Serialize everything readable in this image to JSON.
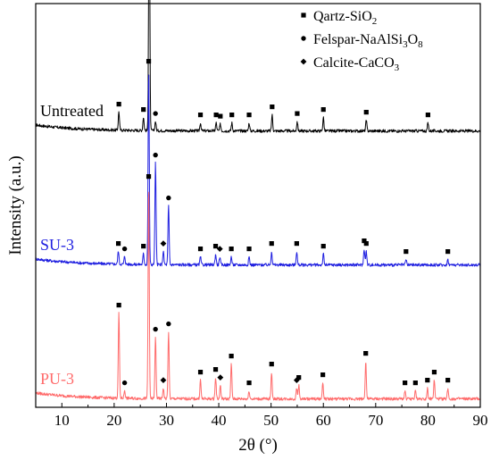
{
  "chart_data": {
    "type": "line",
    "xlabel": "2θ (°)",
    "ylabel": "Intensity (a.u.)",
    "xlim": [
      5,
      90
    ],
    "x_ticks": [
      "10",
      "20",
      "30",
      "40",
      "50",
      "60",
      "70",
      "80",
      "90"
    ],
    "x_tick_values": [
      10,
      20,
      30,
      40,
      50,
      60,
      70,
      80,
      90
    ],
    "grid": false,
    "legend": {
      "placement": "top-right",
      "entries": [
        {
          "symbol": "square",
          "label": "Qartz-SiO",
          "sub": "2",
          "rest": ""
        },
        {
          "symbol": "circle",
          "label": "Felspar-NaAlSi",
          "sub": "3",
          "rest": "O",
          "sub2": "8"
        },
        {
          "symbol": "diamond",
          "label": "Calcite-CaCO",
          "sub": "3",
          "rest": ""
        }
      ]
    },
    "series": [
      {
        "name": "Untreated",
        "color": "#000000",
        "baseline": 1.0,
        "peaks": [
          {
            "x": 20.9,
            "h": 0.07,
            "m": "square"
          },
          {
            "x": 25.6,
            "h": 0.05,
            "m": "square"
          },
          {
            "x": 26.7,
            "h": 1.0,
            "m": "square"
          },
          {
            "x": 27.9,
            "h": 0.035,
            "m": "circle"
          },
          {
            "x": 36.5,
            "h": 0.03,
            "m": "square"
          },
          {
            "x": 39.5,
            "h": 0.03,
            "m": "square"
          },
          {
            "x": 40.3,
            "h": 0.025,
            "m": "square"
          },
          {
            "x": 42.5,
            "h": 0.03,
            "m": "square"
          },
          {
            "x": 45.8,
            "h": 0.03,
            "m": "square"
          },
          {
            "x": 50.2,
            "h": 0.06,
            "m": "square"
          },
          {
            "x": 55.0,
            "h": 0.035,
            "m": "square"
          },
          {
            "x": 60.0,
            "h": 0.05,
            "m": "square"
          },
          {
            "x": 68.2,
            "h": 0.04,
            "m": "square"
          },
          {
            "x": 80.0,
            "h": 0.03,
            "m": "square"
          }
        ]
      },
      {
        "name": "SU-3",
        "color": "#2020e0",
        "baseline": 0.5,
        "peaks": [
          {
            "x": 20.8,
            "h": 0.05,
            "m": "square"
          },
          {
            "x": 22.0,
            "h": 0.03,
            "m": "circle"
          },
          {
            "x": 25.6,
            "h": 0.04,
            "m": "square"
          },
          {
            "x": 26.6,
            "h": 0.73,
            "m": "square"
          },
          {
            "x": 27.9,
            "h": 0.38,
            "m": "circle"
          },
          {
            "x": 29.4,
            "h": 0.05,
            "m": "diamond"
          },
          {
            "x": 30.4,
            "h": 0.22,
            "m": "circle"
          },
          {
            "x": 36.5,
            "h": 0.03,
            "m": "square"
          },
          {
            "x": 39.4,
            "h": 0.04,
            "m": "square"
          },
          {
            "x": 40.2,
            "h": 0.03,
            "m": "diamond"
          },
          {
            "x": 42.4,
            "h": 0.03,
            "m": "square"
          },
          {
            "x": 45.8,
            "h": 0.03,
            "m": "square"
          },
          {
            "x": 50.1,
            "h": 0.05,
            "m": "square"
          },
          {
            "x": 54.9,
            "h": 0.05,
            "m": "square"
          },
          {
            "x": 60.0,
            "h": 0.04,
            "m": "square"
          },
          {
            "x": 67.8,
            "h": 0.06,
            "m": "square"
          },
          {
            "x": 68.2,
            "h": 0.05,
            "m": "square"
          },
          {
            "x": 75.8,
            "h": 0.02,
            "m": "square"
          },
          {
            "x": 83.8,
            "h": 0.02,
            "m": "square"
          }
        ]
      },
      {
        "name": "PU-3",
        "color": "#ff6b6b",
        "baseline": 0.0,
        "peaks": [
          {
            "x": 20.9,
            "h": 0.32,
            "m": "square"
          },
          {
            "x": 22.0,
            "h": 0.03,
            "m": "circle"
          },
          {
            "x": 26.6,
            "h": 0.8,
            "m": "square"
          },
          {
            "x": 27.9,
            "h": 0.23,
            "m": "circle"
          },
          {
            "x": 29.4,
            "h": 0.04,
            "m": "diamond"
          },
          {
            "x": 30.4,
            "h": 0.25,
            "m": "circle"
          },
          {
            "x": 36.5,
            "h": 0.07,
            "m": "square"
          },
          {
            "x": 39.4,
            "h": 0.08,
            "m": "square"
          },
          {
            "x": 40.3,
            "h": 0.05,
            "m": "diamond"
          },
          {
            "x": 42.4,
            "h": 0.13,
            "m": "square"
          },
          {
            "x": 45.8,
            "h": 0.03,
            "m": "square"
          },
          {
            "x": 50.1,
            "h": 0.1,
            "m": "square"
          },
          {
            "x": 54.9,
            "h": 0.04,
            "m": "diamond"
          },
          {
            "x": 55.3,
            "h": 0.05,
            "m": "square"
          },
          {
            "x": 59.9,
            "h": 0.06,
            "m": "square"
          },
          {
            "x": 68.1,
            "h": 0.14,
            "m": "square"
          },
          {
            "x": 75.6,
            "h": 0.03,
            "m": "square"
          },
          {
            "x": 77.6,
            "h": 0.03,
            "m": "square"
          },
          {
            "x": 79.9,
            "h": 0.04,
            "m": "square"
          },
          {
            "x": 81.2,
            "h": 0.07,
            "m": "square"
          },
          {
            "x": 83.8,
            "h": 0.04,
            "m": "square"
          }
        ]
      }
    ]
  }
}
